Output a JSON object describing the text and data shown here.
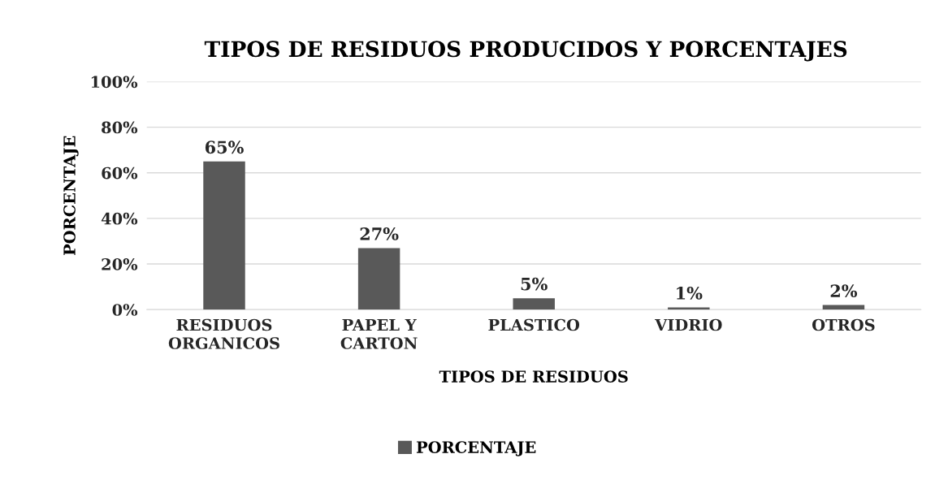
{
  "chart_data": {
    "type": "bar",
    "title": "TIPOS DE RESIDUOS PRODUCIDOS Y PORCENTAJES",
    "xlabel": "TIPOS DE RESIDUOS",
    "ylabel": "PORCENTAJE",
    "categories": [
      "RESIDUOS\nORGANICOS",
      "PAPEL Y\nCARTON",
      "PLASTICO",
      "VIDRIO",
      "OTROS"
    ],
    "series": [
      {
        "name": "PORCENTAJE",
        "color": "#595959",
        "values": [
          65,
          27,
          5,
          1,
          2
        ],
        "value_labels": [
          "65%",
          "27%",
          "5%",
          "1%",
          "2%"
        ]
      }
    ],
    "ylim": [
      0,
      100
    ],
    "yticks": [
      {
        "value": 0,
        "label": "0%"
      },
      {
        "value": 20,
        "label": "20%"
      },
      {
        "value": 40,
        "label": "40%"
      },
      {
        "value": 60,
        "label": "60%"
      },
      {
        "value": 80,
        "label": "80%"
      },
      {
        "value": 100,
        "label": "100%"
      }
    ],
    "grid": "y",
    "legend": "bottom"
  }
}
